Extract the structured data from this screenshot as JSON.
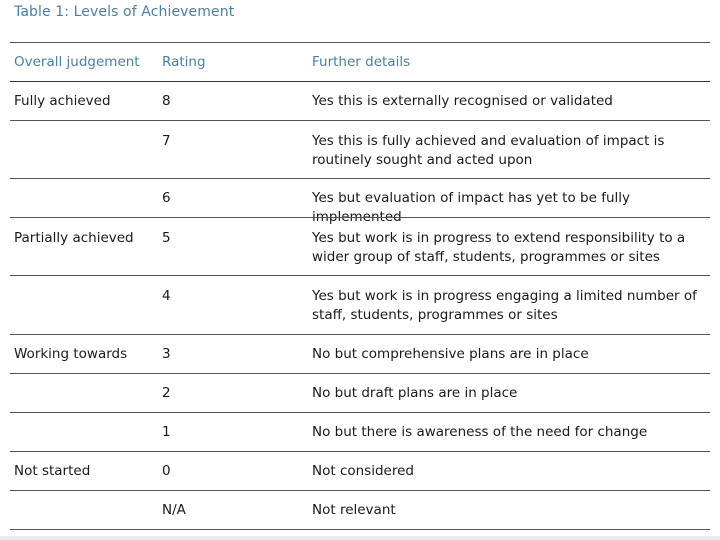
{
  "table": {
    "title": "Table 1:  Levels of Achievement",
    "headers": {
      "judgement": "Overall judgement",
      "rating": "Rating",
      "details": "Further details"
    },
    "rows": [
      {
        "judgement": "Fully achieved",
        "rating": "8",
        "details": "Yes this is externally recognised or validated"
      },
      {
        "judgement": "",
        "rating": "7",
        "details": "Yes this is fully achieved and evaluation of impact is routinely sought and acted upon"
      },
      {
        "judgement": "",
        "rating": "6",
        "details": "Yes but evaluation of impact has yet to be fully implemented"
      },
      {
        "judgement": "Partially achieved",
        "rating": "5",
        "details": "Yes but work is in progress to extend responsibility to a wider group of staff, students, programmes or sites"
      },
      {
        "judgement": "",
        "rating": "4",
        "details": "Yes but work is in progress engaging a limited number of staff, students, programmes or sites"
      },
      {
        "judgement": "Working towards",
        "rating": "3",
        "details": "No but comprehensive plans are in place"
      },
      {
        "judgement": "",
        "rating": "2",
        "details": "No but draft plans are in place"
      },
      {
        "judgement": "",
        "rating": "1",
        "details": "No but there is awareness of the need for change"
      },
      {
        "judgement": "Not started",
        "rating": "0",
        "details": "Not considered"
      },
      {
        "judgement": "",
        "rating": "N/A",
        "details": "Not relevant"
      }
    ]
  }
}
